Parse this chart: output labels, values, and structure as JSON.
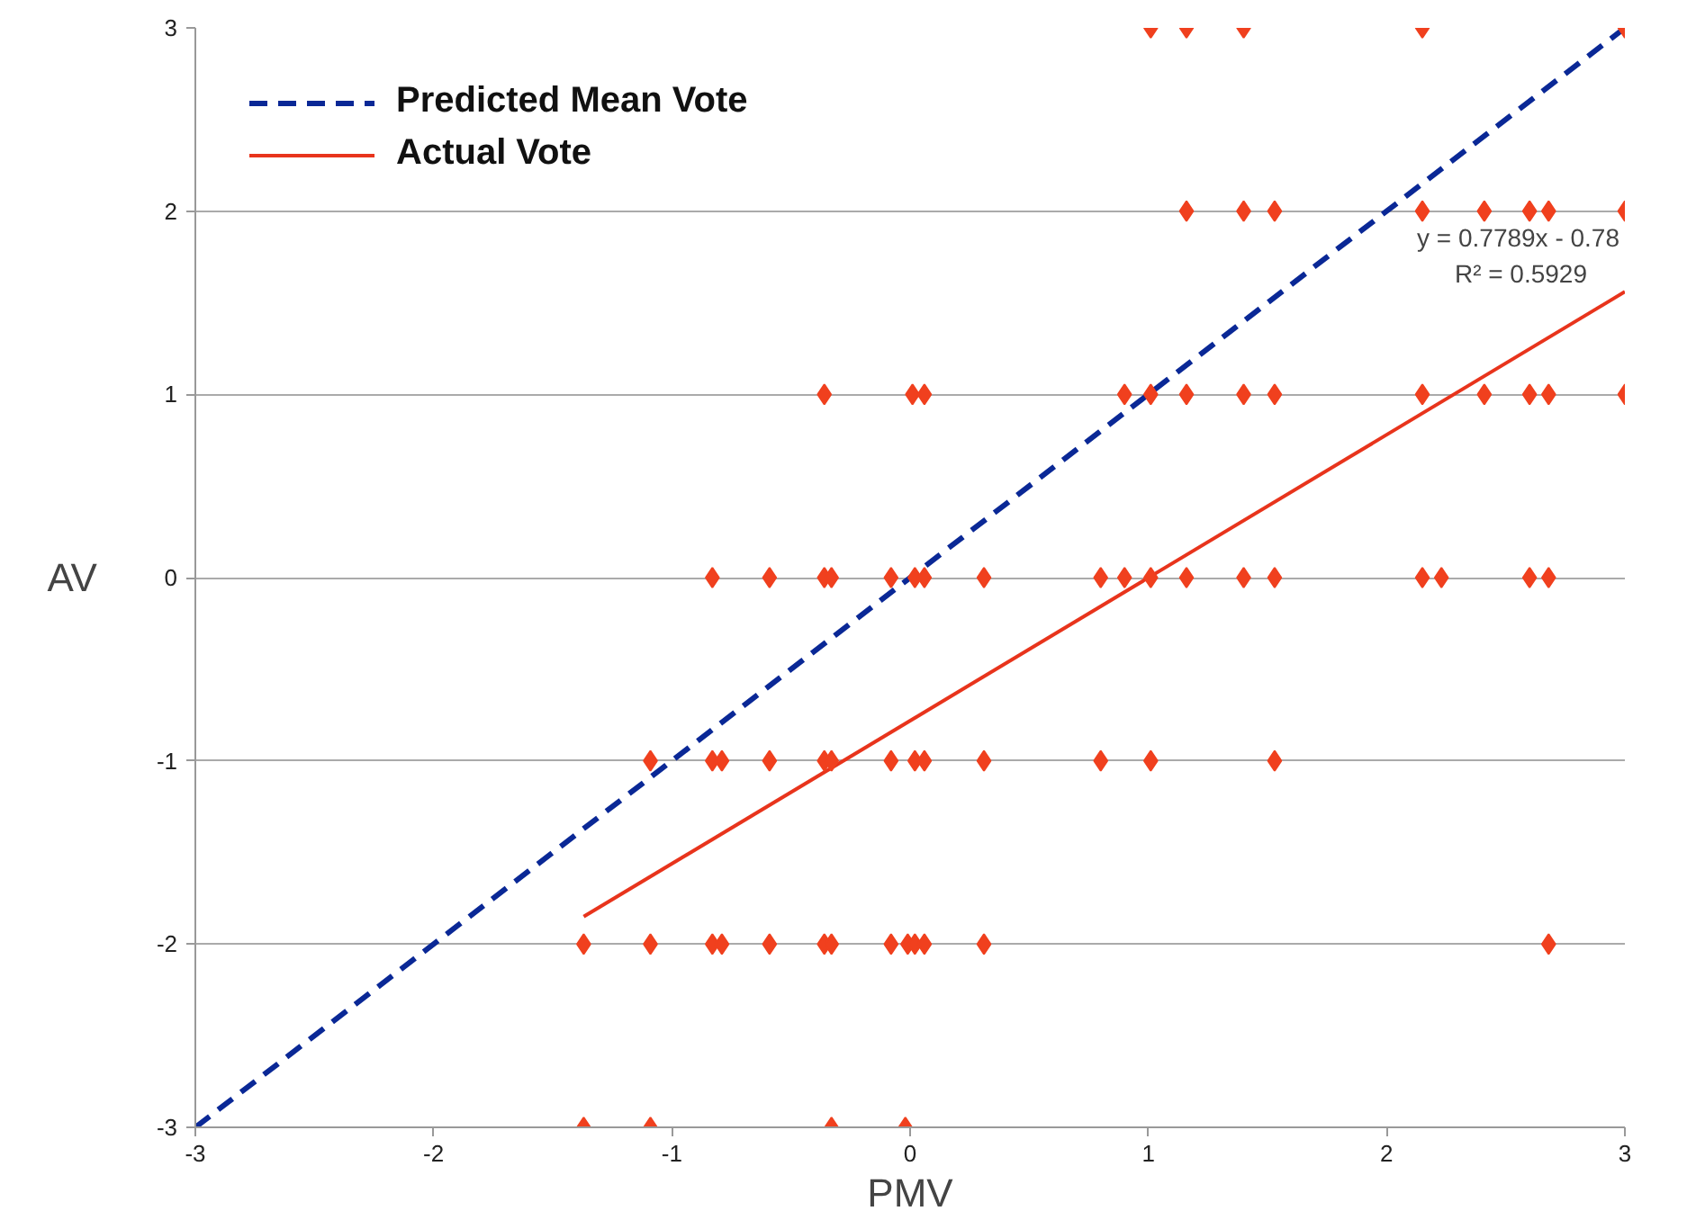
{
  "chart_data": {
    "type": "scatter",
    "xlabel": "PMV",
    "ylabel": "AV",
    "xlim": [
      -3,
      3
    ],
    "ylim": [
      -3,
      3
    ],
    "xticks": [
      -3,
      -2,
      -1,
      0,
      1,
      2,
      3
    ],
    "yticks": [
      -3,
      -2,
      -1,
      0,
      1,
      2,
      3
    ],
    "grid": "y",
    "legend": "top left",
    "series": [
      {
        "name": "Predicted Mean Vote",
        "type": "line",
        "line_style": "dashed",
        "marker": "none",
        "color": "#0a2896",
        "x": [
          -3,
          3
        ],
        "values": [
          -3,
          3
        ]
      },
      {
        "name": "Actual Vote",
        "type": "line",
        "line_style": "solid",
        "marker": "none",
        "color": "#e8341c",
        "x": [
          -1.37,
          3
        ],
        "values": [
          -1.85,
          1.56
        ]
      },
      {
        "marker": "diamond",
        "color": "#f0401e",
        "x": [
          1.01,
          1.16,
          1.4,
          2.15,
          3.0,
          1.16,
          1.4,
          1.53,
          2.15,
          2.41,
          2.6,
          2.68,
          3.0,
          -0.36,
          0.01,
          0.06,
          0.9,
          1.01,
          1.16,
          1.4,
          1.53,
          2.15,
          2.41,
          2.6,
          2.68,
          3.0,
          -0.83,
          -0.59,
          -0.36,
          -0.33,
          -0.08,
          0.02,
          0.06,
          0.31,
          0.8,
          0.9,
          1.01,
          1.16,
          1.4,
          1.53,
          2.15,
          2.23,
          2.6,
          2.68,
          -1.09,
          -0.83,
          -0.79,
          -0.59,
          -0.36,
          -0.33,
          -0.08,
          0.02,
          0.06,
          0.31,
          0.8,
          1.01,
          1.53,
          -1.37,
          -1.09,
          -0.83,
          -0.79,
          -0.59,
          -0.36,
          -0.33,
          -0.08,
          -0.01,
          0.02,
          0.06,
          0.31,
          2.68,
          -1.37,
          -1.09,
          -0.33,
          -0.02
        ],
        "values": [
          3,
          3,
          3,
          3,
          3,
          2,
          2,
          2,
          2,
          2,
          2,
          2,
          2,
          1,
          1,
          1,
          1,
          1,
          1,
          1,
          1,
          1,
          1,
          1,
          1,
          1,
          0,
          0,
          0,
          0,
          0,
          0,
          0,
          0,
          0,
          0,
          0,
          0,
          0,
          0,
          0,
          0,
          0,
          0,
          -1,
          -1,
          -1,
          -1,
          -1,
          -1,
          -1,
          -1,
          -1,
          -1,
          -1,
          -1,
          -1,
          -2,
          -2,
          -2,
          -2,
          -2,
          -2,
          -2,
          -2,
          -2,
          -2,
          -2,
          -2,
          -2,
          -3,
          -3,
          -3,
          -3
        ]
      }
    ],
    "annotations": [
      {
        "text": "y = 0.7789x - 0.78",
        "x": 3,
        "y": 1.56
      },
      {
        "text": "R² = 0.5929",
        "x": 3,
        "y": 1.56
      }
    ]
  }
}
